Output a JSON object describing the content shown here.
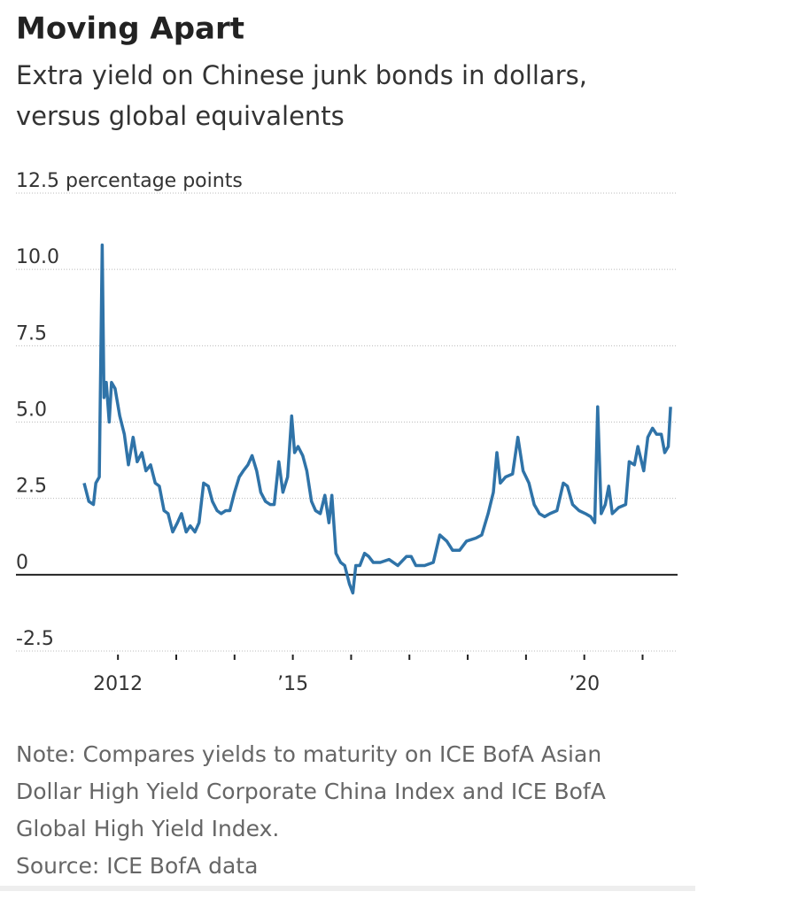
{
  "chart_data": {
    "type": "line",
    "title": "Moving Apart",
    "subtitle": [
      "Extra yield on Chinese junk bonds in dollars,",
      "versus global equivalents"
    ],
    "note": [
      "Note: Compares yields to maturity on ICE BofA Asian",
      "Dollar High Yield Corporate China Index and ICE BofA",
      "Global High Yield Index."
    ],
    "source": "Source: ICE BofA data",
    "color": "#2f73a8",
    "xlim": [
      2010.25,
      2021.6
    ],
    "xticks": [
      2012,
      {
        "value": 2015,
        "label": "’15"
      },
      {
        "value": 2020,
        "label": "’20"
      }
    ],
    "xminorticks": [
      2013,
      2014,
      2016,
      2017,
      2018,
      2019,
      2021
    ],
    "ylim": [
      -2.5,
      12.5
    ],
    "yticks": [
      {
        "value": 12.5,
        "label": "12.5 percentage points"
      },
      {
        "value": 10,
        "label": "10.0"
      },
      7.5,
      {
        "value": 5,
        "label": "5.0"
      },
      2.5,
      0,
      -2.5
    ],
    "grid": true,
    "x": [
      2011.42,
      2011.5,
      2011.58,
      2011.62,
      2011.68,
      2011.73,
      2011.76,
      2011.8,
      2011.85,
      2011.89,
      2011.95,
      2012.03,
      2012.11,
      2012.18,
      2012.26,
      2012.33,
      2012.41,
      2012.48,
      2012.56,
      2012.64,
      2012.71,
      2012.79,
      2012.86,
      2012.94,
      2013.02,
      2013.09,
      2013.17,
      2013.24,
      2013.32,
      2013.39,
      2013.47,
      2013.55,
      2013.62,
      2013.7,
      2013.77,
      2013.85,
      2013.92,
      2014.0,
      2014.08,
      2014.15,
      2014.23,
      2014.3,
      2014.38,
      2014.45,
      2014.53,
      2014.61,
      2014.68,
      2014.76,
      2014.83,
      2014.91,
      2014.98,
      2015.03,
      2015.09,
      2015.17,
      2015.24,
      2015.32,
      2015.39,
      2015.47,
      2015.55,
      2015.62,
      2015.67,
      2015.74,
      2015.82,
      2015.89,
      2015.97,
      2016.03,
      2016.08,
      2016.15,
      2016.23,
      2016.3,
      2016.38,
      2016.5,
      2016.65,
      2016.8,
      2016.95,
      2017.03,
      2017.11,
      2017.26,
      2017.41,
      2017.52,
      2017.64,
      2017.74,
      2017.86,
      2017.98,
      2018.14,
      2018.24,
      2018.35,
      2018.44,
      2018.5,
      2018.56,
      2018.65,
      2018.77,
      2018.86,
      2018.95,
      2019.05,
      2019.14,
      2019.23,
      2019.32,
      2019.41,
      2019.53,
      2019.64,
      2019.71,
      2019.8,
      2019.91,
      2020.02,
      2020.11,
      2020.18,
      2020.23,
      2020.29,
      2020.36,
      2020.42,
      2020.48,
      2020.59,
      2020.71,
      2020.77,
      2020.86,
      2020.92,
      2021.02,
      2021.09,
      2021.17,
      2021.24,
      2021.32,
      2021.38,
      2021.44,
      2021.48
    ],
    "values": [
      3.0,
      2.4,
      2.3,
      3.0,
      3.2,
      10.8,
      5.8,
      6.3,
      5.0,
      6.3,
      6.1,
      5.2,
      4.6,
      3.6,
      4.5,
      3.7,
      4.0,
      3.4,
      3.6,
      3.0,
      2.9,
      2.1,
      2.0,
      1.4,
      1.7,
      2.0,
      1.4,
      1.6,
      1.4,
      1.7,
      3.0,
      2.9,
      2.4,
      2.1,
      2.0,
      2.1,
      2.1,
      2.7,
      3.2,
      3.4,
      3.6,
      3.9,
      3.4,
      2.7,
      2.4,
      2.3,
      2.3,
      3.7,
      2.7,
      3.2,
      5.2,
      4.0,
      4.2,
      3.9,
      3.4,
      2.4,
      2.1,
      2.0,
      2.6,
      1.7,
      2.6,
      0.7,
      0.4,
      0.3,
      -0.3,
      -0.6,
      0.3,
      0.3,
      0.7,
      0.6,
      0.4,
      0.4,
      0.5,
      0.3,
      0.6,
      0.6,
      0.3,
      0.3,
      0.4,
      1.3,
      1.1,
      0.8,
      0.8,
      1.1,
      1.2,
      1.3,
      2.0,
      2.7,
      4.0,
      3.0,
      3.2,
      3.3,
      4.5,
      3.4,
      3.0,
      2.3,
      2.0,
      1.9,
      2.0,
      2.1,
      3.0,
      2.9,
      2.3,
      2.1,
      2.0,
      1.9,
      1.7,
      5.5,
      2.0,
      2.3,
      2.9,
      2.0,
      2.2,
      2.3,
      3.7,
      3.6,
      4.2,
      3.4,
      4.5,
      4.8,
      4.6,
      4.6,
      4.0,
      4.2,
      5.5
    ]
  }
}
